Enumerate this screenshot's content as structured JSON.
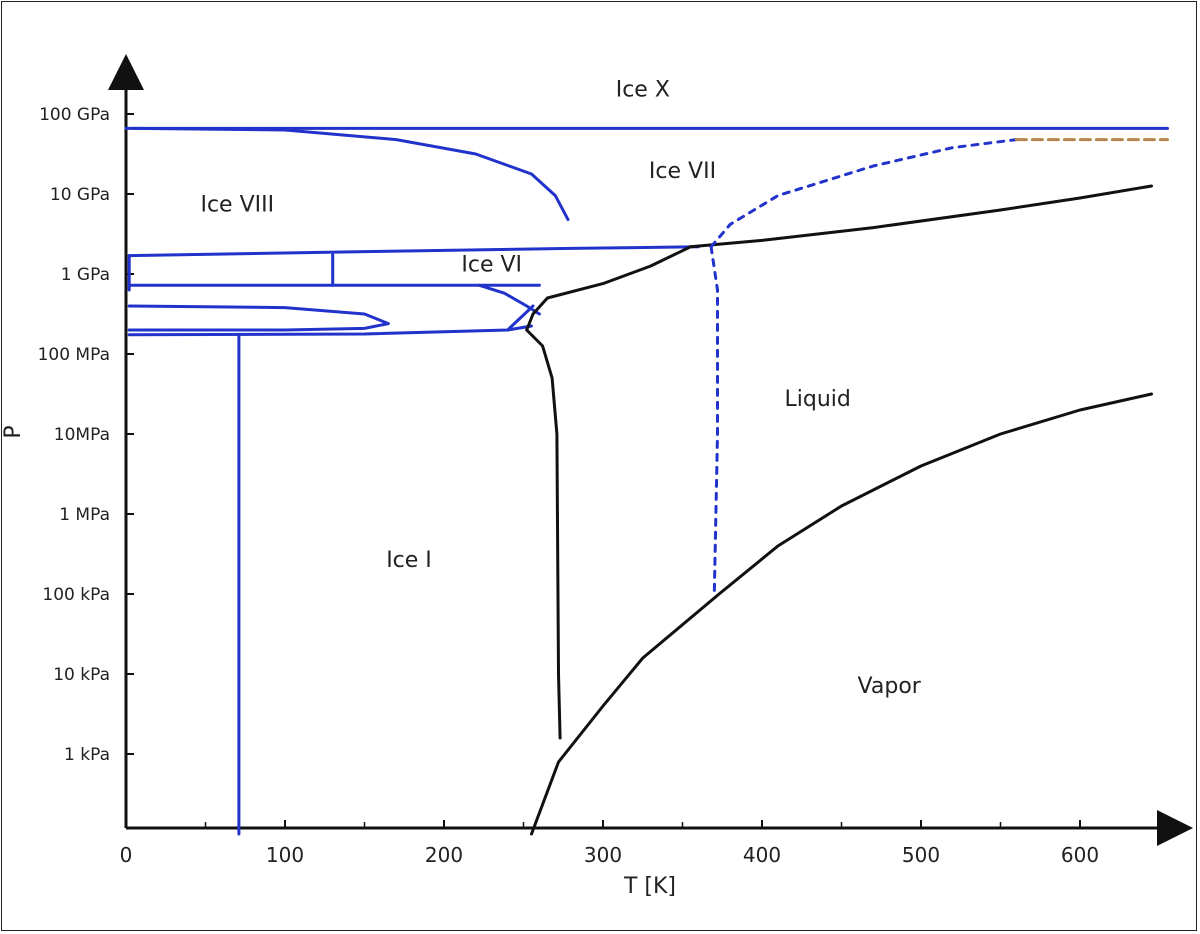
{
  "chart_data": {
    "type": "phase-diagram",
    "xlabel": "T [K]",
    "ylabel": "P",
    "x_ticks": [
      0,
      100,
      200,
      300,
      400,
      500,
      600
    ],
    "xlim": [
      0,
      660
    ],
    "y_scale": "log",
    "y_ticks": [
      {
        "value": 1000,
        "label": "1 kPa"
      },
      {
        "value": 10000,
        "label": "10 kPa"
      },
      {
        "value": 100000,
        "label": "100 kPa"
      },
      {
        "value": 1000000,
        "label": "1 MPa"
      },
      {
        "value": 10000000,
        "label": "10MPa"
      },
      {
        "value": 100000000,
        "label": "100 MPa"
      },
      {
        "value": 1000000000,
        "label": "1 GPa"
      },
      {
        "value": 10000000000,
        "label": "10 GPa"
      },
      {
        "value": 100000000000,
        "label": "100 GPa"
      }
    ],
    "ylim_log10": [
      2.0,
      11.5
    ],
    "colors": {
      "ice_boundary": "#2233cc",
      "black_boundary": "#111111",
      "dashed_orange": "#b8864b"
    },
    "regions": [
      {
        "name": "Ice X",
        "t": 325,
        "log10p": 11.22
      },
      {
        "name": "Ice VII",
        "t": 350,
        "log10p": 10.2
      },
      {
        "name": "Ice VIII",
        "t": 70,
        "log10p": 9.78
      },
      {
        "name": "Ice VI",
        "t": 230,
        "log10p": 9.03
      },
      {
        "name": "Liquid",
        "t": 435,
        "log10p": 7.35
      },
      {
        "name": "Ice I",
        "t": 178,
        "log10p": 5.34
      },
      {
        "name": "Vapor",
        "t": 480,
        "log10p": 3.76
      }
    ],
    "series": [
      {
        "style": "blue-solid",
        "points": [
          [
            0,
            10.82
          ],
          [
            655,
            10.82
          ]
        ]
      },
      {
        "style": "blue-solid",
        "points": [
          [
            5,
            10.82
          ],
          [
            100,
            10.8
          ],
          [
            170,
            10.68
          ],
          [
            220,
            10.5
          ],
          [
            255,
            10.25
          ],
          [
            270,
            9.98
          ],
          [
            278,
            9.68
          ]
        ]
      },
      {
        "style": "blue-solid",
        "points": [
          [
            2,
            9.23
          ],
          [
            150,
            9.28
          ],
          [
            280,
            9.32
          ],
          [
            360,
            9.34
          ]
        ]
      },
      {
        "style": "blue-solid",
        "points": [
          [
            2,
            9.23
          ],
          [
            2,
            8.8
          ]
        ]
      },
      {
        "style": "blue-solid",
        "points": [
          [
            130,
            9.24
          ],
          [
            130,
            8.86
          ]
        ]
      },
      {
        "style": "blue-solid",
        "points": [
          [
            2,
            8.86
          ],
          [
            150,
            8.86
          ],
          [
            220,
            8.86
          ],
          [
            260,
            8.86
          ]
        ]
      },
      {
        "style": "blue-solid",
        "points": [
          [
            222,
            8.86
          ],
          [
            238,
            8.76
          ],
          [
            252,
            8.6
          ],
          [
            260,
            8.5
          ]
        ]
      },
      {
        "style": "blue-solid",
        "points": [
          [
            2,
            8.6
          ],
          [
            100,
            8.58
          ],
          [
            150,
            8.5
          ],
          [
            165,
            8.38
          ],
          [
            150,
            8.32
          ],
          [
            100,
            8.3
          ],
          [
            2,
            8.3
          ]
        ]
      },
      {
        "style": "blue-solid",
        "points": [
          [
            2,
            8.24
          ],
          [
            150,
            8.25
          ],
          [
            240,
            8.3
          ],
          [
            255,
            8.35
          ]
        ]
      },
      {
        "style": "blue-solid",
        "points": [
          [
            240,
            8.3
          ],
          [
            248,
            8.45
          ],
          [
            256,
            8.6
          ]
        ]
      },
      {
        "style": "blue-solid",
        "points": [
          [
            71,
            8.22
          ],
          [
            71,
            2.0
          ]
        ]
      },
      {
        "style": "black-solid",
        "points": [
          [
            252,
            8.3
          ],
          [
            256,
            8.5
          ],
          [
            265,
            8.7
          ],
          [
            300,
            8.88
          ],
          [
            330,
            9.1
          ],
          [
            355,
            9.34
          ]
        ]
      },
      {
        "style": "black-solid",
        "points": [
          [
            252,
            8.3
          ],
          [
            262,
            8.1
          ],
          [
            268,
            7.7
          ],
          [
            271,
            7.0
          ],
          [
            272,
            4.0
          ],
          [
            273,
            3.2
          ]
        ]
      },
      {
        "style": "black-solid",
        "points": [
          [
            255,
            2.0
          ],
          [
            272,
            2.9
          ],
          [
            300,
            3.6
          ],
          [
            325,
            4.2
          ],
          [
            373,
            5.0
          ],
          [
            410,
            5.6
          ],
          [
            450,
            6.1
          ],
          [
            500,
            6.6
          ],
          [
            550,
            7.0
          ],
          [
            600,
            7.3
          ],
          [
            645,
            7.5
          ]
        ]
      },
      {
        "style": "black-solid",
        "points": [
          [
            355,
            9.34
          ],
          [
            400,
            9.42
          ],
          [
            470,
            9.58
          ],
          [
            550,
            9.8
          ],
          [
            600,
            9.95
          ],
          [
            645,
            10.1
          ]
        ]
      },
      {
        "style": "blue-dashed",
        "points": [
          [
            368,
            9.34
          ],
          [
            372,
            8.8
          ],
          [
            372,
            7.0
          ],
          [
            370,
            5.0
          ]
        ]
      },
      {
        "style": "blue-dashed",
        "points": [
          [
            368,
            9.34
          ],
          [
            380,
            9.62
          ],
          [
            410,
            9.98
          ],
          [
            470,
            10.35
          ],
          [
            520,
            10.58
          ],
          [
            560,
            10.68
          ]
        ]
      },
      {
        "style": "orange-dashed",
        "points": [
          [
            560,
            10.68
          ],
          [
            655,
            10.68
          ]
        ]
      }
    ]
  }
}
